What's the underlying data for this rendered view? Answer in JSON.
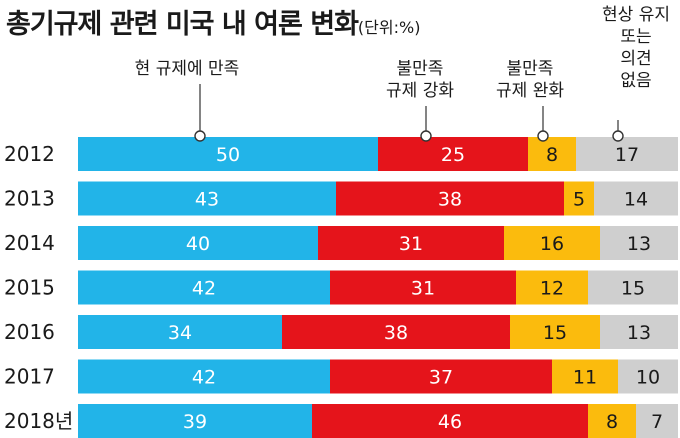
{
  "title": "총기규제 관련 미국 내 여론 변화",
  "unit": "(단위:%)",
  "colors": {
    "satisfied": "#22b4e8",
    "stricter": "#e5141b",
    "looser": "#fbbb0d",
    "no_opinion": "#cfcfcf"
  },
  "chart_data": {
    "type": "bar",
    "orientation": "horizontal",
    "stacked": true,
    "categories": [
      "2012",
      "2013",
      "2014",
      "2015",
      "2016",
      "2017",
      "2018년"
    ],
    "series": [
      {
        "name": "현 규제에 만족",
        "values": [
          50,
          43,
          40,
          42,
          34,
          42,
          39
        ]
      },
      {
        "name": "불만족\n규제 강화",
        "values": [
          25,
          38,
          31,
          31,
          38,
          37,
          46
        ]
      },
      {
        "name": "불만족\n규제 완화",
        "values": [
          8,
          5,
          16,
          12,
          15,
          11,
          8
        ]
      },
      {
        "name": "현상 유지\n또는\n의견\n없음",
        "values": [
          17,
          14,
          13,
          15,
          13,
          10,
          7
        ]
      }
    ],
    "xlim": [
      0,
      100
    ]
  }
}
